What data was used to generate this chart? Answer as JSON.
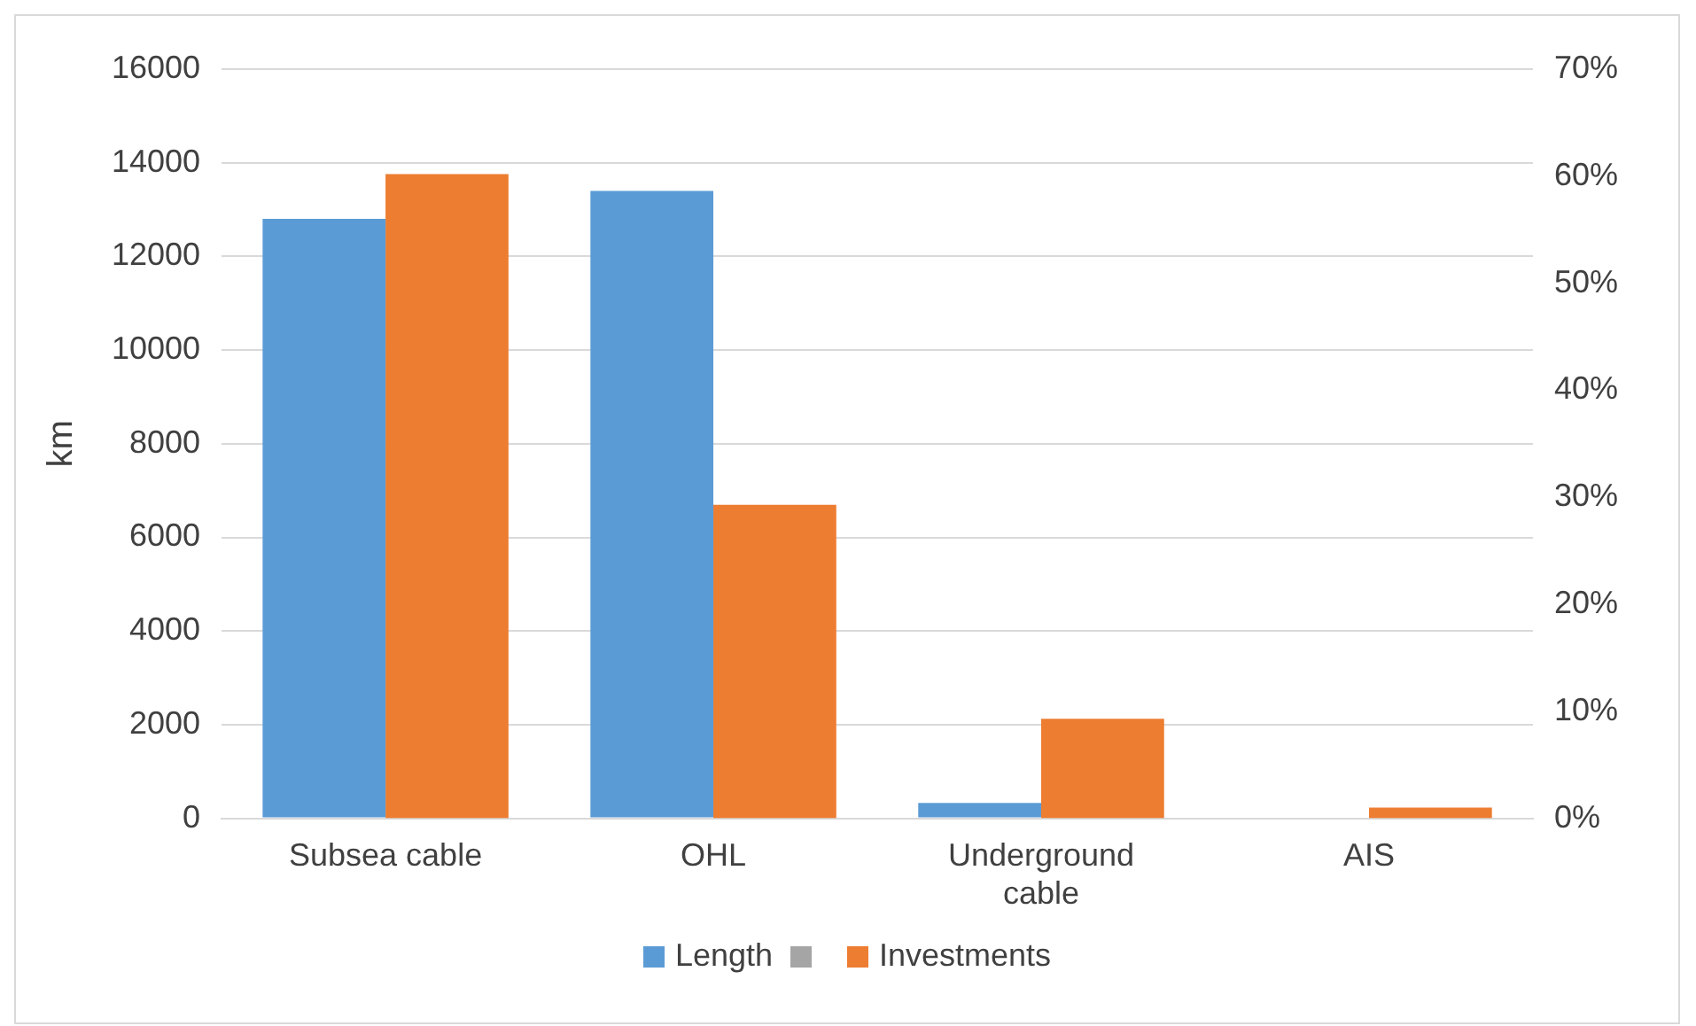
{
  "chart_data": {
    "type": "bar",
    "ylabel": "km",
    "categories": [
      "Subsea cable",
      "OHL",
      "Underground cable",
      "AIS"
    ],
    "series": [
      {
        "name": "Length",
        "color": "#5b9bd5",
        "values": [
          12800,
          13400,
          330,
          0
        ]
      },
      {
        "name": "Investments",
        "color": "#ed7d31",
        "axis": "y2",
        "values": [
          60.2,
          29.3,
          9.3,
          1.0
        ]
      }
    ],
    "ylim": [
      0,
      16000
    ],
    "yticks": [
      0,
      2000,
      4000,
      6000,
      8000,
      10000,
      12000,
      14000,
      16000
    ],
    "y2lim": [
      0,
      70
    ],
    "y2ticks": [
      {
        "value": 0,
        "label": "0%"
      },
      {
        "value": 10,
        "label": "10%"
      },
      {
        "value": 20,
        "label": "20%"
      },
      {
        "value": 30,
        "label": "30%"
      },
      {
        "value": 40,
        "label": "40%"
      },
      {
        "value": 50,
        "label": "50%"
      },
      {
        "value": 60,
        "label": "60%"
      },
      {
        "value": 70,
        "label": "70%"
      }
    ],
    "grid": "y",
    "legend": "bottom"
  }
}
